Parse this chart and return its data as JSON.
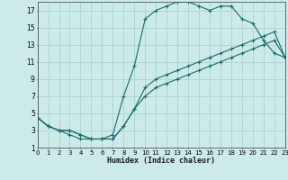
{
  "xlabel": "Humidex (Indice chaleur)",
  "background_color": "#cceae8",
  "grid_color": "#aad4d0",
  "line_color": "#1a6b6b",
  "xlim": [
    0,
    23
  ],
  "ylim": [
    1,
    18
  ],
  "xticks": [
    0,
    1,
    2,
    3,
    4,
    5,
    6,
    7,
    8,
    9,
    10,
    11,
    12,
    13,
    14,
    15,
    16,
    17,
    18,
    19,
    20,
    21,
    22,
    23
  ],
  "yticks": [
    1,
    3,
    5,
    7,
    9,
    11,
    13,
    15,
    17
  ],
  "line1_x": [
    0,
    1,
    2,
    3,
    4,
    5,
    6,
    7,
    8,
    9,
    10,
    11,
    12,
    13,
    14,
    15,
    16,
    17,
    18,
    19,
    20,
    21,
    22,
    23
  ],
  "line1_y": [
    4.5,
    3.5,
    3.0,
    2.5,
    2.0,
    2.0,
    2.0,
    2.5,
    7.0,
    10.5,
    16.0,
    17.0,
    17.5,
    18.0,
    18.0,
    17.5,
    17.0,
    17.5,
    17.5,
    16.0,
    15.5,
    13.5,
    12.0,
    11.5
  ],
  "line2_x": [
    0,
    1,
    2,
    3,
    4,
    5,
    6,
    7,
    8,
    9,
    10,
    11,
    12,
    13,
    14,
    15,
    16,
    17,
    18,
    19,
    20,
    21,
    22,
    23
  ],
  "line2_y": [
    4.5,
    3.5,
    3.0,
    3.0,
    2.5,
    2.0,
    2.0,
    2.0,
    3.5,
    5.5,
    8.0,
    9.0,
    9.5,
    10.0,
    10.5,
    11.0,
    11.5,
    12.0,
    12.5,
    13.0,
    13.5,
    14.0,
    14.5,
    11.5
  ],
  "line3_x": [
    0,
    1,
    2,
    3,
    4,
    5,
    6,
    7,
    8,
    9,
    10,
    11,
    12,
    13,
    14,
    15,
    16,
    17,
    18,
    19,
    20,
    21,
    22,
    23
  ],
  "line3_y": [
    4.5,
    3.5,
    3.0,
    3.0,
    2.5,
    2.0,
    2.0,
    2.0,
    3.5,
    5.5,
    7.0,
    8.0,
    8.5,
    9.0,
    9.5,
    10.0,
    10.5,
    11.0,
    11.5,
    12.0,
    12.5,
    13.0,
    13.5,
    11.5
  ]
}
